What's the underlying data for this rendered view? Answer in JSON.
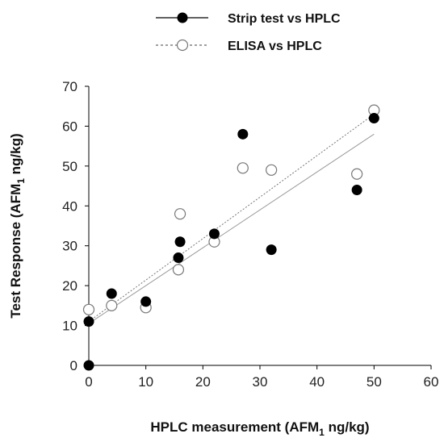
{
  "chart_data": {
    "type": "scatter",
    "xlabel": "HPLC measurement (AFM",
    "xlabel_sub": "1",
    "xlabel_tail": " ng/kg)",
    "ylabel": "Test Response (AFM",
    "ylabel_sub": "1",
    "ylabel_tail": " ng/kg)",
    "xlim": [
      0,
      60
    ],
    "ylim": [
      0,
      70
    ],
    "xticks": [
      "0",
      "10",
      "20",
      "30",
      "40",
      "50",
      "60"
    ],
    "yticks": [
      "0",
      "10",
      "20",
      "30",
      "40",
      "50",
      "60",
      "70"
    ],
    "grid": false,
    "legend_placement": "top",
    "series": [
      {
        "name": "Strip test vs HPLC",
        "marker": "filled-circle",
        "line": "solid",
        "color": "#000000",
        "line_color": "#9a9a9a",
        "points": [
          {
            "x": 0,
            "y": 0
          },
          {
            "x": 0,
            "y": 11
          },
          {
            "x": 4,
            "y": 18
          },
          {
            "x": 10,
            "y": 16
          },
          {
            "x": 15.7,
            "y": 27
          },
          {
            "x": 16,
            "y": 31
          },
          {
            "x": 22,
            "y": 33
          },
          {
            "x": 27,
            "y": 58
          },
          {
            "x": 32,
            "y": 29
          },
          {
            "x": 47,
            "y": 44
          },
          {
            "x": 50,
            "y": 62
          }
        ],
        "trendline": {
          "x0": 0,
          "y0": 10.5,
          "x1": 50,
          "y1": 58
        }
      },
      {
        "name": "ELISA vs HPLC",
        "marker": "open-circle",
        "line": "dotted",
        "color": "#777777",
        "line_color": "#777777",
        "points": [
          {
            "x": 0,
            "y": 14
          },
          {
            "x": 4,
            "y": 15
          },
          {
            "x": 10,
            "y": 14.5
          },
          {
            "x": 15.7,
            "y": 24
          },
          {
            "x": 16,
            "y": 38
          },
          {
            "x": 22,
            "y": 31
          },
          {
            "x": 27,
            "y": 49.5
          },
          {
            "x": 32,
            "y": 49
          },
          {
            "x": 47,
            "y": 48
          },
          {
            "x": 50,
            "y": 64
          }
        ],
        "trendline": {
          "x0": 0,
          "y0": 11,
          "x1": 50,
          "y1": 63
        }
      }
    ]
  }
}
